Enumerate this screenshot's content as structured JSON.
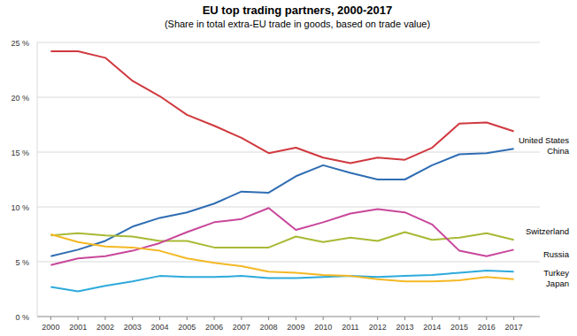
{
  "chart_data": {
    "type": "line",
    "title": "EU top trading partners, 2000-2017",
    "subtitle": "(Share in total extra-EU trade in goods, based on trade value)",
    "categories": [
      "2000",
      "2001",
      "2002",
      "2003",
      "2004",
      "2005",
      "2006",
      "2007",
      "2008",
      "2009",
      "2010",
      "2011",
      "2012",
      "2013",
      "2014",
      "2015",
      "2016",
      "2017"
    ],
    "ylim": [
      0,
      25
    ],
    "yticks": [
      {
        "value": 0,
        "label": "0 %"
      },
      {
        "value": 5,
        "label": "5 %"
      },
      {
        "value": 10,
        "label": "10 %"
      },
      {
        "value": 15,
        "label": "15 %"
      },
      {
        "value": 20,
        "label": "20 %"
      },
      {
        "value": 25,
        "label": "25 %"
      }
    ],
    "grid": true,
    "series": [
      {
        "name": "United States",
        "color": "#d0393f",
        "values": [
          24.2,
          24.2,
          23.6,
          21.5,
          20.1,
          18.4,
          17.4,
          16.3,
          14.9,
          15.4,
          14.5,
          14.0,
          14.5,
          14.3,
          15.4,
          17.6,
          17.7,
          16.9
        ]
      },
      {
        "name": "China",
        "color": "#2f6db3",
        "values": [
          5.5,
          6.1,
          6.9,
          8.2,
          9.0,
          9.5,
          10.3,
          11.4,
          11.3,
          12.8,
          13.8,
          13.1,
          12.5,
          12.5,
          13.8,
          14.8,
          14.9,
          15.3
        ]
      },
      {
        "name": "Switzerland",
        "color": "#a9b934",
        "values": [
          7.4,
          7.6,
          7.4,
          7.3,
          6.9,
          6.9,
          6.3,
          6.3,
          6.3,
          7.3,
          6.8,
          7.2,
          6.9,
          7.7,
          7.0,
          7.2,
          7.6,
          7.0
        ]
      },
      {
        "name": "Russia",
        "color": "#c8479b",
        "values": [
          4.7,
          5.3,
          5.5,
          6.0,
          6.7,
          7.7,
          8.6,
          8.9,
          9.9,
          7.9,
          8.6,
          9.4,
          9.8,
          9.5,
          8.4,
          6.0,
          5.5,
          6.1
        ]
      },
      {
        "name": "Turkey",
        "color": "#2eaadc",
        "values": [
          2.7,
          2.3,
          2.8,
          3.2,
          3.7,
          3.6,
          3.6,
          3.7,
          3.5,
          3.5,
          3.6,
          3.7,
          3.6,
          3.7,
          3.8,
          4.0,
          4.2,
          4.1
        ]
      },
      {
        "name": "Japan",
        "color": "#f4b823",
        "values": [
          7.5,
          6.8,
          6.4,
          6.3,
          6.0,
          5.3,
          4.9,
          4.6,
          4.1,
          4.0,
          3.8,
          3.7,
          3.4,
          3.2,
          3.2,
          3.3,
          3.6,
          3.4
        ]
      }
    ]
  }
}
